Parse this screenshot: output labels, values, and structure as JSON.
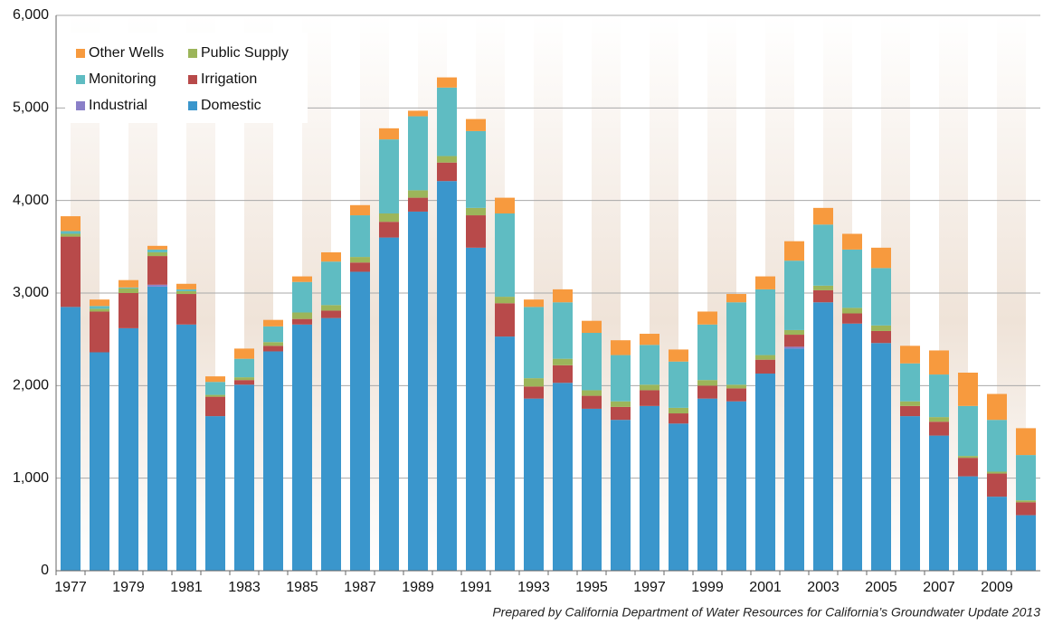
{
  "chart_data": {
    "type": "stacked_bar",
    "categories": [
      "1977",
      null,
      "1979",
      null,
      "1981",
      null,
      "1983",
      null,
      "1985",
      null,
      "1987",
      null,
      "1989",
      null,
      "1991",
      null,
      "1993",
      null,
      "1995",
      null,
      "1997",
      null,
      "1999",
      null,
      "2001",
      null,
      "2003",
      null,
      "2005",
      null,
      "2007",
      null,
      "2009",
      null
    ],
    "series": [
      {
        "name": "Domestic",
        "color": "#3a96cc",
        "values": [
          2850,
          2360,
          2620,
          3070,
          2660,
          1670,
          2010,
          2370,
          2660,
          2730,
          3230,
          3600,
          3880,
          4210,
          3490,
          2530,
          1860,
          2030,
          1750,
          1630,
          1780,
          1590,
          1860,
          1830,
          2130,
          2400,
          2900,
          2670,
          2460,
          1670,
          1460,
          1020,
          800,
          600
        ]
      },
      {
        "name": "Industrial",
        "color": "#8a7fc8",
        "values": [
          0,
          0,
          0,
          20,
          0,
          0,
          0,
          0,
          0,
          0,
          0,
          0,
          0,
          0,
          0,
          0,
          0,
          0,
          0,
          0,
          0,
          0,
          0,
          0,
          0,
          20,
          0,
          0,
          0,
          0,
          0,
          0,
          0,
          0
        ]
      },
      {
        "name": "Irrigation",
        "color": "#b84a4a",
        "values": [
          760,
          440,
          380,
          310,
          330,
          210,
          50,
          60,
          60,
          80,
          100,
          170,
          150,
          200,
          350,
          360,
          130,
          190,
          140,
          140,
          170,
          110,
          140,
          140,
          150,
          130,
          130,
          110,
          130,
          110,
          150,
          200,
          250,
          140
        ]
      },
      {
        "name": "Public Supply",
        "color": "#9cb55a",
        "values": [
          30,
          30,
          50,
          40,
          30,
          20,
          30,
          40,
          70,
          60,
          60,
          90,
          80,
          70,
          80,
          70,
          90,
          70,
          60,
          60,
          60,
          60,
          60,
          40,
          50,
          50,
          50,
          60,
          60,
          50,
          50,
          20,
          20,
          20
        ]
      },
      {
        "name": "Monitoring",
        "color": "#5fbcc2",
        "values": [
          30,
          30,
          10,
          30,
          20,
          140,
          200,
          170,
          330,
          470,
          450,
          800,
          800,
          740,
          830,
          900,
          770,
          610,
          620,
          500,
          430,
          500,
          600,
          890,
          710,
          750,
          660,
          630,
          620,
          410,
          460,
          540,
          560,
          490
        ]
      },
      {
        "name": "Other Wells",
        "color": "#f79a3e",
        "values": [
          160,
          70,
          80,
          40,
          60,
          60,
          110,
          70,
          60,
          100,
          110,
          120,
          60,
          110,
          130,
          170,
          80,
          140,
          130,
          160,
          120,
          130,
          140,
          90,
          140,
          210,
          180,
          170,
          220,
          190,
          260,
          360,
          280,
          290
        ]
      }
    ],
    "ylim": [
      0,
      6000
    ],
    "yticks": [
      0,
      {
        "value": 1000,
        "label": "1,000"
      },
      {
        "value": 2000,
        "label": "2,000"
      },
      {
        "value": 3000,
        "label": "3,000"
      },
      {
        "value": 4000,
        "label": "4,000"
      },
      {
        "value": 5000,
        "label": "5,000"
      },
      {
        "value": 6000,
        "label": "6,000"
      }
    ],
    "grid": true,
    "legend": "upper left",
    "source": "Prepared by California Department of Water Resources for California’s Groundwater Update 2013"
  }
}
